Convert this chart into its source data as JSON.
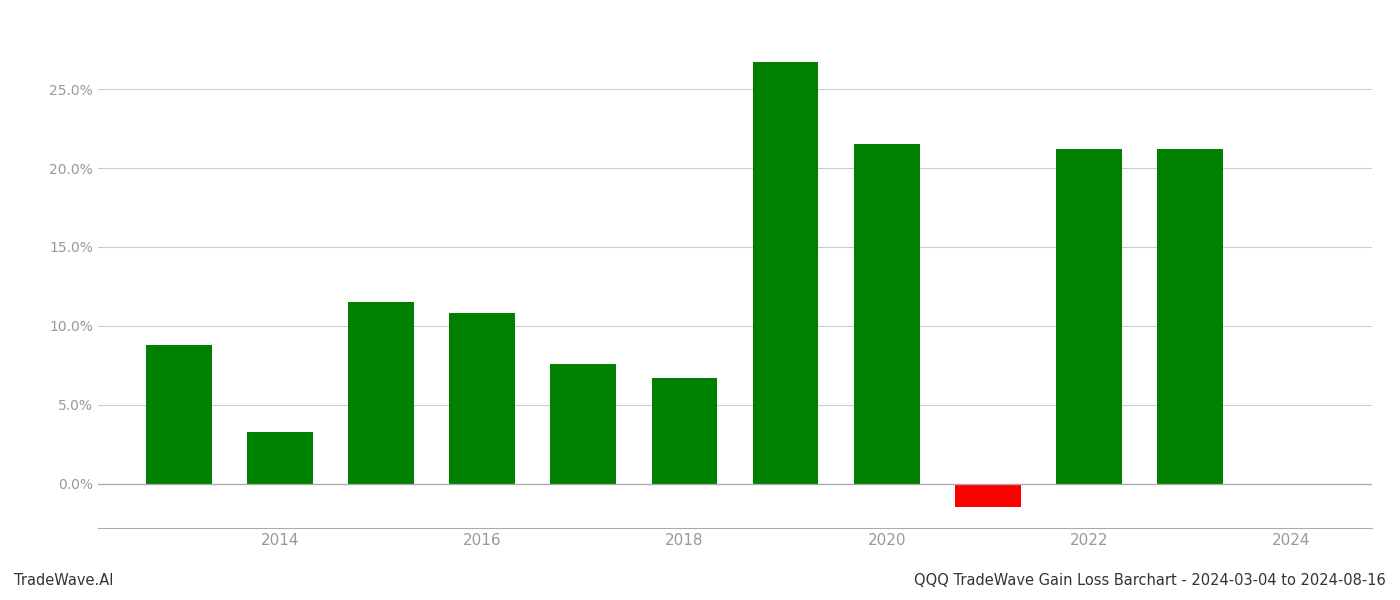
{
  "years": [
    2013,
    2014,
    2015,
    2016,
    2017,
    2018,
    2019,
    2020,
    2021,
    2022,
    2023
  ],
  "values": [
    0.088,
    0.033,
    0.115,
    0.108,
    0.076,
    0.067,
    0.267,
    0.215,
    -0.015,
    0.212,
    0.212
  ],
  "colors": [
    "#008000",
    "#008000",
    "#008000",
    "#008000",
    "#008000",
    "#008000",
    "#008000",
    "#008000",
    "#ff0000",
    "#008000",
    "#008000"
  ],
  "footer_left": "TradeWave.AI",
  "footer_right": "QQQ TradeWave Gain Loss Barchart - 2024-03-04 to 2024-08-16",
  "ylim": [
    -0.028,
    0.295
  ],
  "yticks": [
    0.0,
    0.05,
    0.1,
    0.15,
    0.2,
    0.25
  ],
  "background_color": "#ffffff",
  "grid_color": "#cccccc",
  "bar_width": 0.65,
  "fig_width": 14.0,
  "fig_height": 6.0,
  "dpi": 100,
  "xlim": [
    2012.2,
    2024.8
  ],
  "xticks": [
    2014,
    2016,
    2018,
    2020,
    2022,
    2024
  ],
  "spine_color": "#aaaaaa",
  "tick_label_color": "#999999",
  "footer_color": "#333333",
  "footer_fontsize": 10.5
}
